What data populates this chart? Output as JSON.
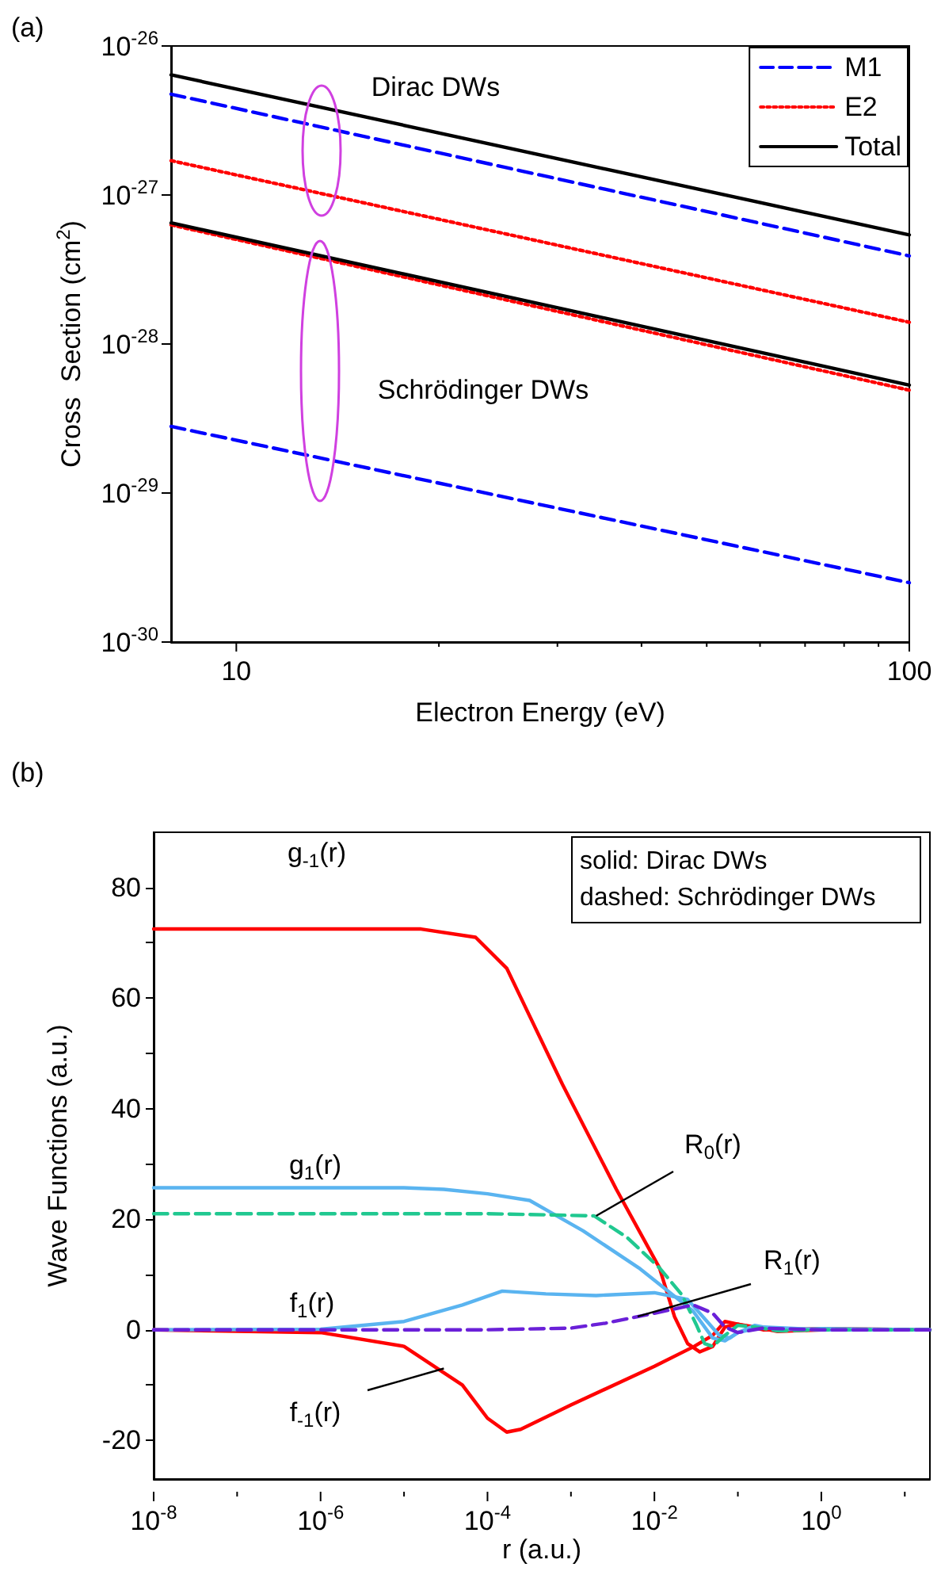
{
  "chart_data": [
    {
      "type": "line",
      "title": "(a)",
      "xlabel": "Electron Energy (eV)",
      "ylabel": "Cross  Section (cm$^{2}$)",
      "log": "xy",
      "legend": "top right",
      "x": [
        8,
        100
      ],
      "xlim": [
        8,
        100
      ],
      "xticks": [
        10,
        {
          "value": 20,
          "label": null
        },
        {
          "value": 30,
          "label": null
        },
        {
          "value": 40,
          "label": null
        },
        {
          "value": 50,
          "label": null
        },
        {
          "value": 60,
          "label": null
        },
        {
          "value": 70,
          "label": null
        },
        {
          "value": 80,
          "label": null
        },
        {
          "value": 90,
          "label": null
        },
        100
      ],
      "ylim": [
        1e-30,
        1e-26
      ],
      "yticks": [
        {
          "value": 1e-30,
          "label": "10$^{-30}$"
        },
        {
          "value": 1e-29,
          "label": "10$^{-29}$"
        },
        {
          "value": 1e-28,
          "label": "10$^{-28}$"
        },
        {
          "value": 1e-27,
          "label": "10$^{-27}$"
        },
        {
          "value": 1e-26,
          "label": "10$^{-26}$"
        }
      ],
      "annotations": [
        "Dirac DWs",
        "Schrödinger DWs"
      ],
      "series": [
        {
          "name": "M1",
          "color": "#0000ff",
          "line_style": "dashed",
          "values": [
            4.75e-27,
            3.9e-28
          ]
        },
        {
          "name": "E2",
          "color": "#ff0000",
          "line_style": "dotted",
          "values": [
            1.7e-27,
            1.4e-28
          ]
        },
        {
          "name": "Total",
          "color": "#000000",
          "line_style": "solid",
          "values": [
            6.4e-27,
            5.4e-28
          ]
        },
        {
          "color": "#0000ff",
          "line_style": "dashed",
          "values": [
            2.8e-29,
            2.5e-30
          ]
        },
        {
          "color": "#ff0000",
          "line_style": "dotted",
          "values": [
            6.3e-28,
            4.9e-29
          ]
        },
        {
          "color": "#000000",
          "line_style": "solid",
          "values": [
            6.5e-28,
            5.3e-29
          ]
        }
      ]
    },
    {
      "type": "line",
      "title": "(b)",
      "xlabel": "r (a.u.)",
      "ylabel": "Wave Functions (a.u.)",
      "log": "x",
      "xlim": [
        1e-08,
        20
      ],
      "xticks": [
        {
          "value": 1e-08,
          "label": "10$^{-8}$"
        },
        {
          "value": 1e-07,
          "label": null
        },
        {
          "value": 1e-06,
          "label": "10$^{-6}$"
        },
        {
          "value": 1e-05,
          "label": null
        },
        {
          "value": 0.0001,
          "label": "10$^{-4}$"
        },
        {
          "value": 0.001,
          "label": null
        },
        {
          "value": 0.01,
          "label": "10$^{-2}$"
        },
        {
          "value": 0.1,
          "label": null
        },
        {
          "value": 1,
          "label": "10$^{0}$"
        },
        {
          "value": 10,
          "label": null
        }
      ],
      "ylim": [
        -27,
        90
      ],
      "yticks": [
        -20,
        {
          "value": -10,
          "label": null
        },
        0,
        {
          "value": 10,
          "label": null
        },
        20,
        {
          "value": 30,
          "label": null
        },
        40,
        {
          "value": 50,
          "label": null
        },
        60,
        {
          "value": 70,
          "label": null
        },
        80
      ],
      "annotations": [
        "solid: Dirac DWs",
        "dashed: Schrödinger DWs",
        "g$_{-1}$(r)",
        "g$_{1}$(r)",
        "f$_{1}$(r)",
        {
          "text": "f$_{-1}$(r)",
          "x": 3e-05,
          "y": -7
        },
        {
          "text": "R$_{0}$(r)",
          "x": 0.002,
          "y": 20.6
        },
        {
          "text": "R$_{1}$(r)",
          "x": 0.0063,
          "y": 2.4
        }
      ],
      "series": [
        {
          "color": "#ff0000",
          "line_style": "solid",
          "x": [
            1e-08,
            1e-06,
            1.6e-05,
            7.2e-05,
            0.00017,
            0.00079,
            0.0035,
            0.0115,
            0.0174,
            0.025,
            0.035,
            0.05,
            0.07,
            0.1,
            0.16,
            0.3,
            1,
            20
          ],
          "values": [
            72.5,
            72.5,
            72.5,
            71,
            65.4,
            44.4,
            25.4,
            11.2,
            2.4,
            -2.5,
            -4,
            -3,
            0.5,
            1,
            0.5,
            -0.3,
            0,
            0
          ]
        },
        {
          "color": "#ff0000",
          "line_style": "solid",
          "x": [
            1e-08,
            1e-06,
            1e-05,
            5e-05,
            0.0001,
            0.00017,
            0.00025,
            0.001,
            0.01,
            0.03,
            0.05,
            0.07,
            0.1,
            0.2,
            1,
            20
          ],
          "values": [
            0,
            -0.5,
            -3,
            -10,
            -16,
            -18.5,
            -18,
            -13.6,
            -6.6,
            -3,
            -1,
            1.5,
            1,
            0,
            0.2,
            0
          ]
        },
        {
          "color": "#5ab4f0",
          "line_style": "solid",
          "x": [
            1e-08,
            1e-05,
            3e-05,
            0.0001,
            0.00032,
            0.0014,
            0.0065,
            0.029,
            0.05,
            0.07,
            0.1,
            0.16,
            0.3,
            1,
            20
          ],
          "values": [
            25.7,
            25.7,
            25.4,
            24.6,
            23.4,
            17.9,
            11.2,
            3.4,
            -1.5,
            -2,
            -0.5,
            0.8,
            0,
            0.2,
            0
          ]
        },
        {
          "color": "#5ab4f0",
          "line_style": "solid",
          "x": [
            1e-08,
            1e-06,
            1e-05,
            5e-05,
            0.00015,
            0.0005,
            0.002,
            0.01,
            0.025,
            0.04,
            0.06,
            0.08,
            0.1,
            0.2,
            1,
            20
          ],
          "values": [
            0,
            0.1,
            1.5,
            4.5,
            7,
            6.5,
            6.2,
            6.7,
            5.5,
            2,
            -1,
            -1.5,
            -0.5,
            0.5,
            0,
            0
          ]
        },
        {
          "color": "#20c890",
          "line_style": "dashed",
          "x": [
            1e-08,
            0.0001,
            0.0005,
            0.0019,
            0.0047,
            0.0115,
            0.0214,
            0.0316,
            0.04,
            0.05,
            0.07,
            0.1,
            0.16,
            0.3,
            1,
            20
          ],
          "values": [
            21,
            21,
            20.8,
            20.6,
            16.7,
            11.2,
            6.3,
            1,
            -2.5,
            -3,
            -1,
            0.8,
            0.5,
            -0.2,
            0,
            0
          ]
        },
        {
          "color": "#6a20d8",
          "line_style": "dashed",
          "x": [
            1e-08,
            0.0001,
            0.001,
            0.0026,
            0.01,
            0.029,
            0.05,
            0.07,
            0.1,
            0.2,
            1,
            20
          ],
          "values": [
            0,
            0,
            0.3,
            1.2,
            3,
            4.5,
            3,
            0.5,
            -0.5,
            0.3,
            0,
            0
          ]
        }
      ]
    }
  ]
}
